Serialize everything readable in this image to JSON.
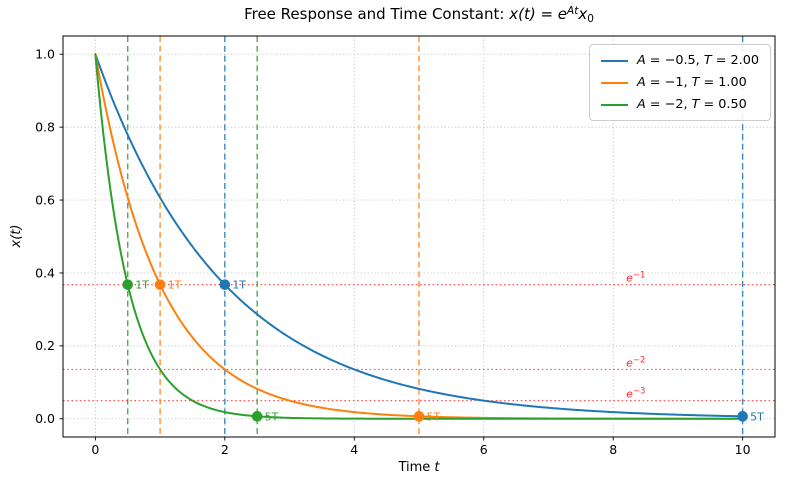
{
  "figure": {
    "title": {
      "prefix": "Free Response and Time Constant: ",
      "math_base": "x(t) = e",
      "math_sup": "At",
      "math_sub_base": "x",
      "math_sub": "0"
    },
    "xlabel": {
      "prefix": "Time ",
      "var": "t"
    },
    "ylabel": "x(t)"
  },
  "chart_data": {
    "type": "line",
    "title": "Free Response and Time Constant: x(t) = e^{At} x_0",
    "xlabel": "Time t",
    "ylabel": "x(t)",
    "xlim": [
      -0.5,
      10.5
    ],
    "ylim": [
      -0.05,
      1.05
    ],
    "xticks": [
      0,
      2,
      4,
      6,
      8,
      10
    ],
    "xtick_labels": [
      "0",
      "2",
      "4",
      "6",
      "8",
      "10"
    ],
    "yticks": [
      0,
      0.2,
      0.4,
      0.6,
      0.8,
      1.0
    ],
    "ytick_labels": [
      "0.0",
      "0.2",
      "0.4",
      "0.6",
      "0.8",
      "1.0"
    ],
    "grid": {
      "on": true,
      "style": "dotted",
      "color": "#b0b0b0"
    },
    "legend": {
      "position": "upper right"
    },
    "t_range": [
      0,
      10
    ],
    "formula": "x(t) = exp(A*t), x0 = 1",
    "series": [
      {
        "label": "A = −0.5, T = 2.00",
        "label_segments": [
          {
            "text": "A",
            "italic": true
          },
          {
            "text": " = −0.5, ",
            "italic": false
          },
          {
            "text": "T",
            "italic": true
          },
          {
            "text": " = 2.00",
            "italic": false
          }
        ],
        "color": "#1f77b4",
        "A": -0.5,
        "T": 2.0,
        "vlines": [
          2.0,
          10.0
        ],
        "key_points": [
          {
            "t": 2.0,
            "x": 0.3679,
            "label": "1T"
          },
          {
            "t": 10.0,
            "x": 0.0067,
            "label": "5T"
          }
        ]
      },
      {
        "label": "A = −1, T = 1.00",
        "label_segments": [
          {
            "text": "A",
            "italic": true
          },
          {
            "text": " = −1, ",
            "italic": false
          },
          {
            "text": "T",
            "italic": true
          },
          {
            "text": " = 1.00",
            "italic": false
          }
        ],
        "color": "#ff7f0e",
        "A": -1,
        "T": 1.0,
        "vlines": [
          1.0,
          5.0
        ],
        "key_points": [
          {
            "t": 1.0,
            "x": 0.3679,
            "label": "1T"
          },
          {
            "t": 5.0,
            "x": 0.0067,
            "label": "5T"
          }
        ]
      },
      {
        "label": "A = −2, T = 0.50",
        "label_segments": [
          {
            "text": "A",
            "italic": true
          },
          {
            "text": " = −2, ",
            "italic": false
          },
          {
            "text": "T",
            "italic": true
          },
          {
            "text": " = 0.50",
            "italic": false
          }
        ],
        "color": "#2ca02c",
        "A": -2,
        "T": 0.5,
        "vlines": [
          0.5,
          2.5
        ],
        "key_points": [
          {
            "t": 0.5,
            "x": 0.3679,
            "label": "1T"
          },
          {
            "t": 2.5,
            "x": 0.0067,
            "label": "5T"
          }
        ]
      }
    ],
    "reference_lines": [
      {
        "y": 0.3679,
        "label_base": "e",
        "label_sup": "−1",
        "label_x": 8.2,
        "color": "#ff0000"
      },
      {
        "y": 0.1353,
        "label_base": "e",
        "label_sup": "−2",
        "label_x": 8.2,
        "color": "#ff0000"
      },
      {
        "y": 0.0498,
        "label_base": "e",
        "label_sup": "−3",
        "label_x": 8.2,
        "color": "#ff0000"
      }
    ]
  }
}
